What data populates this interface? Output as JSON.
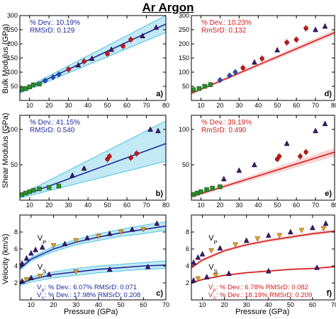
{
  "title": "Ar Argon",
  "colors": {
    "band": "#a8dff0",
    "band_line": "#4cc3e8",
    "blue_fit": "#1f2a9c",
    "red_fit": "#d61c1c",
    "red_band": "#f4b0b0",
    "text_blue": "#1f2a9c",
    "text_red": "#d61c1c",
    "triangle": "#3c1a6e",
    "circle": "#c01a1a",
    "square": "#2e8b2e",
    "diamond": "#1f4fb8",
    "orange_tri": "#e8a020"
  },
  "ylabels": {
    "row1": "Bulk Modulus (GPa)",
    "row2": "Shear Modulus (GPa)",
    "row3": "Velocity (km/s)"
  },
  "xlabels": {
    "left": "Pressure (GPa)",
    "right": "Pressure (GPa)"
  },
  "chart_data": [
    {
      "panel": "a)",
      "type": "scatter",
      "theme": "blue",
      "xlim": [
        5,
        80
      ],
      "ylim": [
        0,
        300
      ],
      "xticks": [
        "10",
        "20",
        "30",
        "40",
        "50",
        "60",
        "70",
        "80"
      ],
      "yticks": [
        "50",
        "100",
        "150",
        "200",
        "250",
        "300"
      ],
      "stats": [
        "% Dev.: 10.19%",
        "RMSrD: 0.129"
      ],
      "fit": {
        "x": [
          5,
          80
        ],
        "y": [
          30,
          270
        ]
      },
      "band": {
        "x": [
          5,
          80
        ],
        "upper": [
          34,
          300
        ],
        "lower": [
          26,
          240
        ]
      },
      "points": [
        {
          "m": "square",
          "x": 6,
          "y": 40
        },
        {
          "m": "square",
          "x": 8,
          "y": 42
        },
        {
          "m": "square",
          "x": 10,
          "y": 48
        },
        {
          "m": "square",
          "x": 12,
          "y": 55
        },
        {
          "m": "square",
          "x": 15,
          "y": 58
        },
        {
          "m": "diamond",
          "x": 18,
          "y": 70
        },
        {
          "m": "diamond",
          "x": 22,
          "y": 82
        },
        {
          "m": "diamond",
          "x": 25,
          "y": 92
        },
        {
          "m": "circle",
          "x": 30,
          "y": 110
        },
        {
          "m": "triangle",
          "x": 35,
          "y": 125
        },
        {
          "m": "circle",
          "x": 38,
          "y": 138
        },
        {
          "m": "triangle",
          "x": 42,
          "y": 148
        },
        {
          "m": "circle",
          "x": 50,
          "y": 165
        },
        {
          "m": "triangle",
          "x": 52,
          "y": 180
        },
        {
          "m": "circle",
          "x": 58,
          "y": 192
        },
        {
          "m": "circle",
          "x": 62,
          "y": 215
        },
        {
          "m": "triangle",
          "x": 68,
          "y": 228
        },
        {
          "m": "triangle",
          "x": 75,
          "y": 258
        }
      ]
    },
    {
      "panel": "d)",
      "type": "scatter",
      "theme": "red",
      "xlim": [
        5,
        80
      ],
      "ylim": [
        0,
        300
      ],
      "xticks": [
        "10",
        "20",
        "30",
        "40",
        "50",
        "60",
        "70",
        "80"
      ],
      "yticks": [
        "50",
        "100",
        "150",
        "200",
        "250",
        "300"
      ],
      "stats": [
        "% Dev.: 10.23%",
        "RmSrD: 0.132"
      ],
      "fit": {
        "x": [
          5,
          80
        ],
        "y": [
          25,
          240
        ]
      },
      "band": {
        "x": [
          5,
          80
        ],
        "upper": [
          29,
          250
        ],
        "lower": [
          21,
          230
        ]
      },
      "points": [
        {
          "m": "square",
          "x": 6,
          "y": 38
        },
        {
          "m": "square",
          "x": 9,
          "y": 42
        },
        {
          "m": "square",
          "x": 12,
          "y": 50
        },
        {
          "m": "square",
          "x": 15,
          "y": 56
        },
        {
          "m": "diamond",
          "x": 20,
          "y": 72
        },
        {
          "m": "diamond",
          "x": 25,
          "y": 88
        },
        {
          "m": "diamond",
          "x": 28,
          "y": 100
        },
        {
          "m": "circle",
          "x": 32,
          "y": 115
        },
        {
          "m": "triangle",
          "x": 38,
          "y": 135
        },
        {
          "m": "circle",
          "x": 42,
          "y": 148
        },
        {
          "m": "triangle",
          "x": 50,
          "y": 178
        },
        {
          "m": "circle",
          "x": 55,
          "y": 205
        },
        {
          "m": "circle",
          "x": 60,
          "y": 215
        },
        {
          "m": "circle",
          "x": 65,
          "y": 255
        },
        {
          "m": "triangle",
          "x": 70,
          "y": 250
        },
        {
          "m": "triangle",
          "x": 75,
          "y": 262
        }
      ]
    },
    {
      "panel": "b)",
      "type": "scatter",
      "theme": "blue",
      "xlim": [
        5,
        80
      ],
      "ylim": [
        0,
        120
      ],
      "xticks": [
        "10",
        "20",
        "30",
        "40",
        "50",
        "60",
        "70",
        "80"
      ],
      "yticks": [
        "50",
        "100"
      ],
      "stats": [
        "% Dev.: 41.15%",
        "RMSrD: 0.540"
      ],
      "fit": {
        "x": [
          5,
          80
        ],
        "y": [
          5,
          80
        ]
      },
      "band": {
        "x": [
          5,
          80
        ],
        "upper": [
          7,
          112
        ],
        "lower": [
          3,
          55
        ]
      },
      "points": [
        {
          "m": "square",
          "x": 6,
          "y": 8
        },
        {
          "m": "square",
          "x": 8,
          "y": 10
        },
        {
          "m": "square",
          "x": 10,
          "y": 12
        },
        {
          "m": "square",
          "x": 12,
          "y": 14
        },
        {
          "m": "square",
          "x": 15,
          "y": 16
        },
        {
          "m": "square",
          "x": 20,
          "y": 18
        },
        {
          "m": "square",
          "x": 25,
          "y": 20
        },
        {
          "m": "triangle",
          "x": 32,
          "y": 35
        },
        {
          "m": "triangle",
          "x": 38,
          "y": 45
        },
        {
          "m": "circle",
          "x": 50,
          "y": 58
        },
        {
          "m": "circle",
          "x": 51,
          "y": 62
        },
        {
          "m": "circle",
          "x": 62,
          "y": 60
        },
        {
          "m": "circle",
          "x": 65,
          "y": 66
        },
        {
          "m": "triangle",
          "x": 72,
          "y": 100
        },
        {
          "m": "triangle",
          "x": 76,
          "y": 98
        }
      ]
    },
    {
      "panel": "e)",
      "type": "scatter",
      "theme": "red",
      "xlim": [
        5,
        80
      ],
      "ylim": [
        0,
        120
      ],
      "xticks": [
        "10",
        "20",
        "30",
        "40",
        "50",
        "60",
        "70",
        "80"
      ],
      "yticks": [
        "50",
        "100"
      ],
      "stats": [
        "% Dev.: 39.19%",
        "RmSrD: 0.490"
      ],
      "fit": {
        "x": [
          5,
          80
        ],
        "y": [
          5,
          68
        ]
      },
      "band": {
        "x": [
          5,
          80
        ],
        "upper": [
          7,
          74
        ],
        "lower": [
          3,
          62
        ]
      },
      "points": [
        {
          "m": "square",
          "x": 6,
          "y": 8
        },
        {
          "m": "square",
          "x": 8,
          "y": 10
        },
        {
          "m": "square",
          "x": 10,
          "y": 12
        },
        {
          "m": "square",
          "x": 13,
          "y": 15
        },
        {
          "m": "square",
          "x": 16,
          "y": 17
        },
        {
          "m": "square",
          "x": 20,
          "y": 19
        },
        {
          "m": "triangle",
          "x": 22,
          "y": 30
        },
        {
          "m": "triangle",
          "x": 30,
          "y": 42
        },
        {
          "m": "triangle",
          "x": 38,
          "y": 50
        },
        {
          "m": "circle",
          "x": 50,
          "y": 58
        },
        {
          "m": "circle",
          "x": 51,
          "y": 62
        },
        {
          "m": "triangle",
          "x": 55,
          "y": 80
        },
        {
          "m": "circle",
          "x": 62,
          "y": 62
        },
        {
          "m": "circle",
          "x": 65,
          "y": 68
        },
        {
          "m": "triangle",
          "x": 70,
          "y": 98
        },
        {
          "m": "triangle",
          "x": 75,
          "y": 108
        }
      ]
    },
    {
      "panel": "c)",
      "type": "scatter",
      "theme": "blue",
      "xlim": [
        5,
        70
      ],
      "ylim": [
        0,
        10
      ],
      "xticks": [
        "10",
        "20",
        "30",
        "40",
        "50",
        "60",
        "70"
      ],
      "yticks": [
        "2",
        "4",
        "6",
        "8"
      ],
      "annotations": [
        "V_P",
        "V_S"
      ],
      "stats": [
        "V_P: % Dev.: 6.07%   RMSrD: 0.071",
        "V_S: % Dev.: 17.98%  RMSrD: 0.208"
      ],
      "fits": [
        {
          "name": "V_P",
          "x": [
            5,
            10,
            20,
            30,
            40,
            50,
            60,
            70
          ],
          "y": [
            3.7,
            4.8,
            6.0,
            6.8,
            7.4,
            7.9,
            8.3,
            8.7
          ]
        },
        {
          "name": "V_S",
          "x": [
            5,
            10,
            20,
            30,
            40,
            50,
            60,
            70
          ],
          "y": [
            1.9,
            2.4,
            3.0,
            3.3,
            3.6,
            3.8,
            4.0,
            4.1
          ]
        }
      ],
      "bands": [
        {
          "x": [
            5,
            10,
            20,
            30,
            40,
            50,
            60,
            70
          ],
          "upper": [
            3.9,
            5.0,
            6.3,
            7.1,
            7.8,
            8.3,
            8.8,
            9.2
          ],
          "lower": [
            3.5,
            4.6,
            5.7,
            6.5,
            7.0,
            7.5,
            7.8,
            8.2
          ]
        },
        {
          "x": [
            5,
            10,
            20,
            30,
            40,
            50,
            60,
            70
          ],
          "upper": [
            2.1,
            2.7,
            3.3,
            3.7,
            4.0,
            4.2,
            4.4,
            4.6
          ],
          "lower": [
            1.7,
            2.1,
            2.6,
            2.9,
            3.2,
            3.4,
            3.6,
            3.7
          ]
        }
      ],
      "points": [
        {
          "m": "triangle",
          "x": 6,
          "y": 4.3
        },
        {
          "m": "triangle",
          "x": 8,
          "y": 4.9
        },
        {
          "m": "triangle",
          "x": 10,
          "y": 5.5
        },
        {
          "m": "triangle",
          "x": 12,
          "y": 5.9
        },
        {
          "m": "triangle",
          "x": 15,
          "y": 6.2
        },
        {
          "m": "orange_tri",
          "x": 20,
          "y": 6.4
        },
        {
          "m": "triangle",
          "x": 25,
          "y": 6.6
        },
        {
          "m": "orange_tri",
          "x": 30,
          "y": 7.0
        },
        {
          "m": "triangle",
          "x": 35,
          "y": 7.3
        },
        {
          "m": "orange_tri",
          "x": 40,
          "y": 7.5
        },
        {
          "m": "triangle",
          "x": 45,
          "y": 7.8
        },
        {
          "m": "orange_tri",
          "x": 50,
          "y": 8.0
        },
        {
          "m": "triangle",
          "x": 55,
          "y": 8.3
        },
        {
          "m": "orange_tri",
          "x": 60,
          "y": 8.3
        },
        {
          "m": "triangle",
          "x": 66,
          "y": 9.0
        },
        {
          "m": "triangle",
          "x": 6,
          "y": 2.2
        },
        {
          "m": "orange_tri",
          "x": 8,
          "y": 2.4
        },
        {
          "m": "triangle",
          "x": 10,
          "y": 2.6
        },
        {
          "m": "orange_tri",
          "x": 14,
          "y": 2.8
        },
        {
          "m": "triangle",
          "x": 18,
          "y": 3.0
        },
        {
          "m": "orange_tri",
          "x": 30,
          "y": 3.3
        },
        {
          "m": "triangle",
          "x": 45,
          "y": 3.6
        },
        {
          "m": "triangle",
          "x": 62,
          "y": 3.9
        }
      ]
    },
    {
      "panel": "f)",
      "type": "scatter",
      "theme": "red",
      "xlim": [
        5,
        70
      ],
      "ylim": [
        0,
        10
      ],
      "xticks": [
        "10",
        "20",
        "30",
        "40",
        "50",
        "60",
        "70"
      ],
      "yticks": [
        "2",
        "4",
        "6",
        "8"
      ],
      "annotations": [
        "V_P",
        "V_S"
      ],
      "stats": [
        "V_P: % Dev.: 6.78%   RMSrD: 0.082",
        "V_S: % Dev.: 18.19%  RMSrD: 0.209"
      ],
      "fits": [
        {
          "name": "V_P",
          "x": [
            5,
            10,
            20,
            30,
            40,
            50,
            60,
            70
          ],
          "y": [
            3.8,
            4.7,
            5.8,
            6.5,
            7.0,
            7.4,
            7.8,
            8.1
          ]
        },
        {
          "name": "V_S",
          "x": [
            5,
            10,
            20,
            30,
            40,
            50,
            60,
            70
          ],
          "y": [
            2.0,
            2.4,
            2.9,
            3.2,
            3.4,
            3.6,
            3.7,
            3.9
          ]
        }
      ],
      "bands": [
        {
          "x": [
            5,
            10,
            20,
            30,
            40,
            50,
            60,
            70
          ],
          "upper": [
            4.0,
            4.9,
            6.0,
            6.7,
            7.2,
            7.6,
            8.0,
            8.3
          ],
          "lower": [
            3.6,
            4.5,
            5.6,
            6.3,
            6.8,
            7.2,
            7.6,
            7.9
          ]
        },
        {
          "x": [
            5,
            10,
            20,
            30,
            40,
            50,
            60,
            70
          ],
          "upper": [
            2.1,
            2.5,
            3.0,
            3.3,
            3.5,
            3.7,
            3.8,
            4.0
          ],
          "lower": [
            1.9,
            2.3,
            2.8,
            3.1,
            3.3,
            3.5,
            3.6,
            3.8
          ]
        }
      ],
      "points": [
        {
          "m": "triangle",
          "x": 6,
          "y": 4.4
        },
        {
          "m": "triangle",
          "x": 8,
          "y": 5.0
        },
        {
          "m": "triangle",
          "x": 10,
          "y": 5.4
        },
        {
          "m": "orange_tri",
          "x": 14,
          "y": 5.8
        },
        {
          "m": "triangle",
          "x": 18,
          "y": 6.1
        },
        {
          "m": "orange_tri",
          "x": 25,
          "y": 6.5
        },
        {
          "m": "triangle",
          "x": 30,
          "y": 7.0
        },
        {
          "m": "orange_tri",
          "x": 35,
          "y": 7.2
        },
        {
          "m": "triangle",
          "x": 40,
          "y": 7.6
        },
        {
          "m": "orange_tri",
          "x": 45,
          "y": 7.6
        },
        {
          "m": "triangle",
          "x": 50,
          "y": 8.0
        },
        {
          "m": "orange_tri",
          "x": 55,
          "y": 8.2
        },
        {
          "m": "triangle",
          "x": 60,
          "y": 8.5
        },
        {
          "m": "triangle",
          "x": 66,
          "y": 9.0
        },
        {
          "m": "orange_tri",
          "x": 65,
          "y": 8.4
        },
        {
          "m": "triangle",
          "x": 6,
          "y": 2.3
        },
        {
          "m": "orange_tri",
          "x": 8,
          "y": 2.5
        },
        {
          "m": "triangle",
          "x": 12,
          "y": 2.7
        },
        {
          "m": "orange_tri",
          "x": 16,
          "y": 2.9
        },
        {
          "m": "triangle",
          "x": 22,
          "y": 3.1
        },
        {
          "m": "triangle",
          "x": 40,
          "y": 3.4
        },
        {
          "m": "triangle",
          "x": 62,
          "y": 3.8
        }
      ]
    }
  ]
}
